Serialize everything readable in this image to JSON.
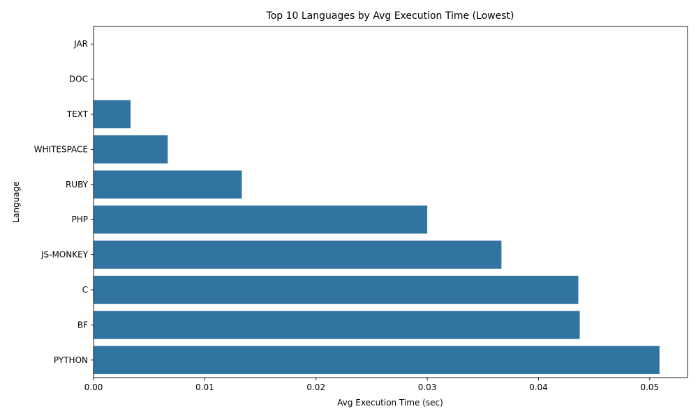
{
  "chart_data": {
    "type": "bar",
    "orientation": "horizontal",
    "title": "Top 10 Languages by Avg Execution Time (Lowest)",
    "xlabel": "Avg Execution Time (sec)",
    "ylabel": "Language",
    "categories": [
      "JAR",
      "DOC",
      "TEXT",
      "WHITESPACE",
      "RUBY",
      "PHP",
      "JS-MONKEY",
      "C",
      "BF",
      "PYTHON"
    ],
    "values": [
      0.0,
      0.0,
      0.00333,
      0.00667,
      0.01333,
      0.03,
      0.03667,
      0.04358,
      0.04371,
      0.05088
    ],
    "xlim": [
      0,
      0.0534
    ],
    "xticks": [
      0,
      0.01,
      0.02,
      0.03,
      0.04,
      0.05
    ],
    "xtick_labels": [
      "0.00",
      "0.01",
      "0.02",
      "0.03",
      "0.04",
      "0.05"
    ],
    "bar_color": "#3274a1",
    "grid": false
  }
}
